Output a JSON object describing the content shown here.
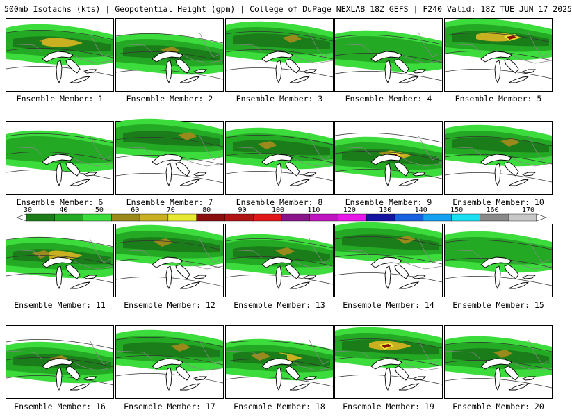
{
  "header": {
    "title": "500mb Isotachs (kts) | Geopotential Height (gpm) | College of DuPage NEXLAB   18Z GEFS | F240 Valid: 18Z TUE JUN 17 2025"
  },
  "legend": {
    "ticks": [
      "30",
      "40",
      "50",
      "60",
      "70",
      "80",
      "90",
      "100",
      "110",
      "120",
      "130",
      "140",
      "150",
      "160",
      "170"
    ],
    "colors": [
      "#1a7d1a",
      "#24a924",
      "#3ddc3d",
      "#9a8a1c",
      "#c8b020",
      "#e8e830",
      "#8a1010",
      "#b01414",
      "#e01818",
      "#8a148a",
      "#c014c0",
      "#e818e8",
      "#1414a0",
      "#1860e0",
      "#14a0f0",
      "#18e0f0",
      "#8a8a8a",
      "#c8c8c8"
    ]
  },
  "panels": [
    {
      "label": "Ensemble Member: 1",
      "intensity": 2
    },
    {
      "label": "Ensemble Member: 2",
      "intensity": 1
    },
    {
      "label": "Ensemble Member: 3",
      "intensity": 1
    },
    {
      "label": "Ensemble Member: 4",
      "intensity": 0
    },
    {
      "label": "Ensemble Member: 5",
      "intensity": 3
    },
    {
      "label": "Ensemble Member: 6",
      "intensity": 0
    },
    {
      "label": "Ensemble Member: 7",
      "intensity": 1
    },
    {
      "label": "Ensemble Member: 8",
      "intensity": 1
    },
    {
      "label": "Ensemble Member: 9",
      "intensity": 3
    },
    {
      "label": "Ensemble Member: 10",
      "intensity": 1
    },
    {
      "label": "Ensemble Member: 11",
      "intensity": 2
    },
    {
      "label": "Ensemble Member: 12",
      "intensity": 1
    },
    {
      "label": "Ensemble Member: 13",
      "intensity": 1
    },
    {
      "label": "Ensemble Member: 14",
      "intensity": 1
    },
    {
      "label": "Ensemble Member: 15",
      "intensity": 0
    },
    {
      "label": "Ensemble Member: 16",
      "intensity": 1
    },
    {
      "label": "Ensemble Member: 17",
      "intensity": 1
    },
    {
      "label": "Ensemble Member: 18",
      "intensity": 2
    },
    {
      "label": "Ensemble Member: 19",
      "intensity": 3
    },
    {
      "label": "Ensemble Member: 20",
      "intensity": 1
    }
  ]
}
